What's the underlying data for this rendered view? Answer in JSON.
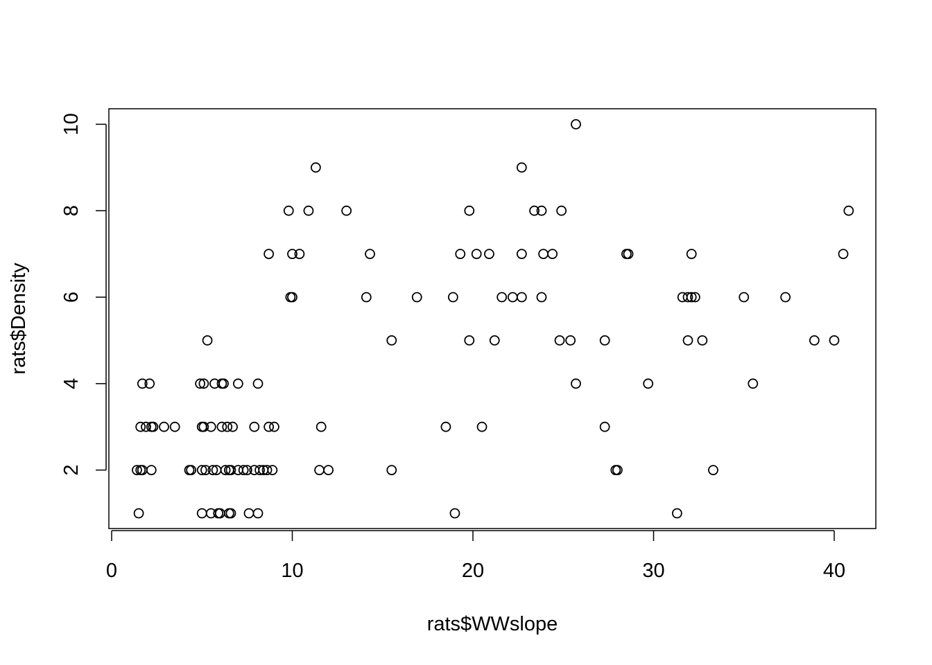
{
  "chart_data": {
    "type": "scatter",
    "title": "",
    "xlabel": "rats$WWslope",
    "ylabel": "rats$Density",
    "xlim": [
      0,
      41
    ],
    "ylim": [
      1,
      10
    ],
    "x_ticks": [
      0,
      10,
      20,
      30,
      40
    ],
    "y_ticks": [
      2,
      4,
      6,
      8,
      10
    ],
    "grid": false,
    "legend": "none",
    "marker": "open-circle",
    "points": [
      [
        1.5,
        1
      ],
      [
        5.0,
        1
      ],
      [
        5.5,
        1
      ],
      [
        5.9,
        1
      ],
      [
        6.0,
        1
      ],
      [
        6.5,
        1
      ],
      [
        6.6,
        1
      ],
      [
        7.6,
        1
      ],
      [
        8.1,
        1
      ],
      [
        19.0,
        1
      ],
      [
        31.3,
        1
      ],
      [
        1.4,
        2
      ],
      [
        1.6,
        2
      ],
      [
        1.7,
        2
      ],
      [
        2.2,
        2
      ],
      [
        4.3,
        2
      ],
      [
        4.4,
        2
      ],
      [
        5.0,
        2
      ],
      [
        5.2,
        2
      ],
      [
        5.6,
        2
      ],
      [
        5.8,
        2
      ],
      [
        6.3,
        2
      ],
      [
        6.5,
        2
      ],
      [
        6.6,
        2
      ],
      [
        7.0,
        2
      ],
      [
        7.3,
        2
      ],
      [
        7.5,
        2
      ],
      [
        7.9,
        2
      ],
      [
        8.2,
        2
      ],
      [
        8.4,
        2
      ],
      [
        8.6,
        2
      ],
      [
        8.9,
        2
      ],
      [
        11.5,
        2
      ],
      [
        12.0,
        2
      ],
      [
        15.5,
        2
      ],
      [
        27.9,
        2
      ],
      [
        28.0,
        2
      ],
      [
        33.3,
        2
      ],
      [
        1.6,
        3
      ],
      [
        1.9,
        3
      ],
      [
        2.2,
        3
      ],
      [
        2.3,
        3
      ],
      [
        2.9,
        3
      ],
      [
        3.5,
        3
      ],
      [
        5.0,
        3
      ],
      [
        5.1,
        3
      ],
      [
        5.5,
        3
      ],
      [
        6.1,
        3
      ],
      [
        6.4,
        3
      ],
      [
        6.7,
        3
      ],
      [
        7.9,
        3
      ],
      [
        8.7,
        3
      ],
      [
        9.0,
        3
      ],
      [
        11.6,
        3
      ],
      [
        18.5,
        3
      ],
      [
        20.5,
        3
      ],
      [
        27.3,
        3
      ],
      [
        1.7,
        4
      ],
      [
        2.1,
        4
      ],
      [
        4.9,
        4
      ],
      [
        5.1,
        4
      ],
      [
        5.7,
        4
      ],
      [
        6.1,
        4
      ],
      [
        6.2,
        4
      ],
      [
        7.0,
        4
      ],
      [
        8.1,
        4
      ],
      [
        25.7,
        4
      ],
      [
        29.7,
        4
      ],
      [
        35.5,
        4
      ],
      [
        5.3,
        5
      ],
      [
        15.5,
        5
      ],
      [
        19.8,
        5
      ],
      [
        21.2,
        5
      ],
      [
        24.8,
        5
      ],
      [
        25.4,
        5
      ],
      [
        27.3,
        5
      ],
      [
        31.9,
        5
      ],
      [
        32.7,
        5
      ],
      [
        38.9,
        5
      ],
      [
        40.0,
        5
      ],
      [
        9.9,
        6
      ],
      [
        10.0,
        6
      ],
      [
        14.1,
        6
      ],
      [
        16.9,
        6
      ],
      [
        18.9,
        6
      ],
      [
        21.6,
        6
      ],
      [
        22.2,
        6
      ],
      [
        22.7,
        6
      ],
      [
        23.8,
        6
      ],
      [
        31.6,
        6
      ],
      [
        31.9,
        6
      ],
      [
        32.1,
        6
      ],
      [
        32.3,
        6
      ],
      [
        35.0,
        6
      ],
      [
        37.3,
        6
      ],
      [
        8.7,
        7
      ],
      [
        10.0,
        7
      ],
      [
        10.4,
        7
      ],
      [
        14.3,
        7
      ],
      [
        19.3,
        7
      ],
      [
        20.2,
        7
      ],
      [
        20.9,
        7
      ],
      [
        22.7,
        7
      ],
      [
        23.9,
        7
      ],
      [
        24.4,
        7
      ],
      [
        28.5,
        7
      ],
      [
        28.6,
        7
      ],
      [
        32.1,
        7
      ],
      [
        40.5,
        7
      ],
      [
        9.8,
        8
      ],
      [
        10.9,
        8
      ],
      [
        13.0,
        8
      ],
      [
        19.8,
        8
      ],
      [
        23.4,
        8
      ],
      [
        23.8,
        8
      ],
      [
        24.9,
        8
      ],
      [
        40.8,
        8
      ],
      [
        11.3,
        9
      ],
      [
        22.7,
        9
      ],
      [
        25.7,
        10
      ]
    ]
  }
}
